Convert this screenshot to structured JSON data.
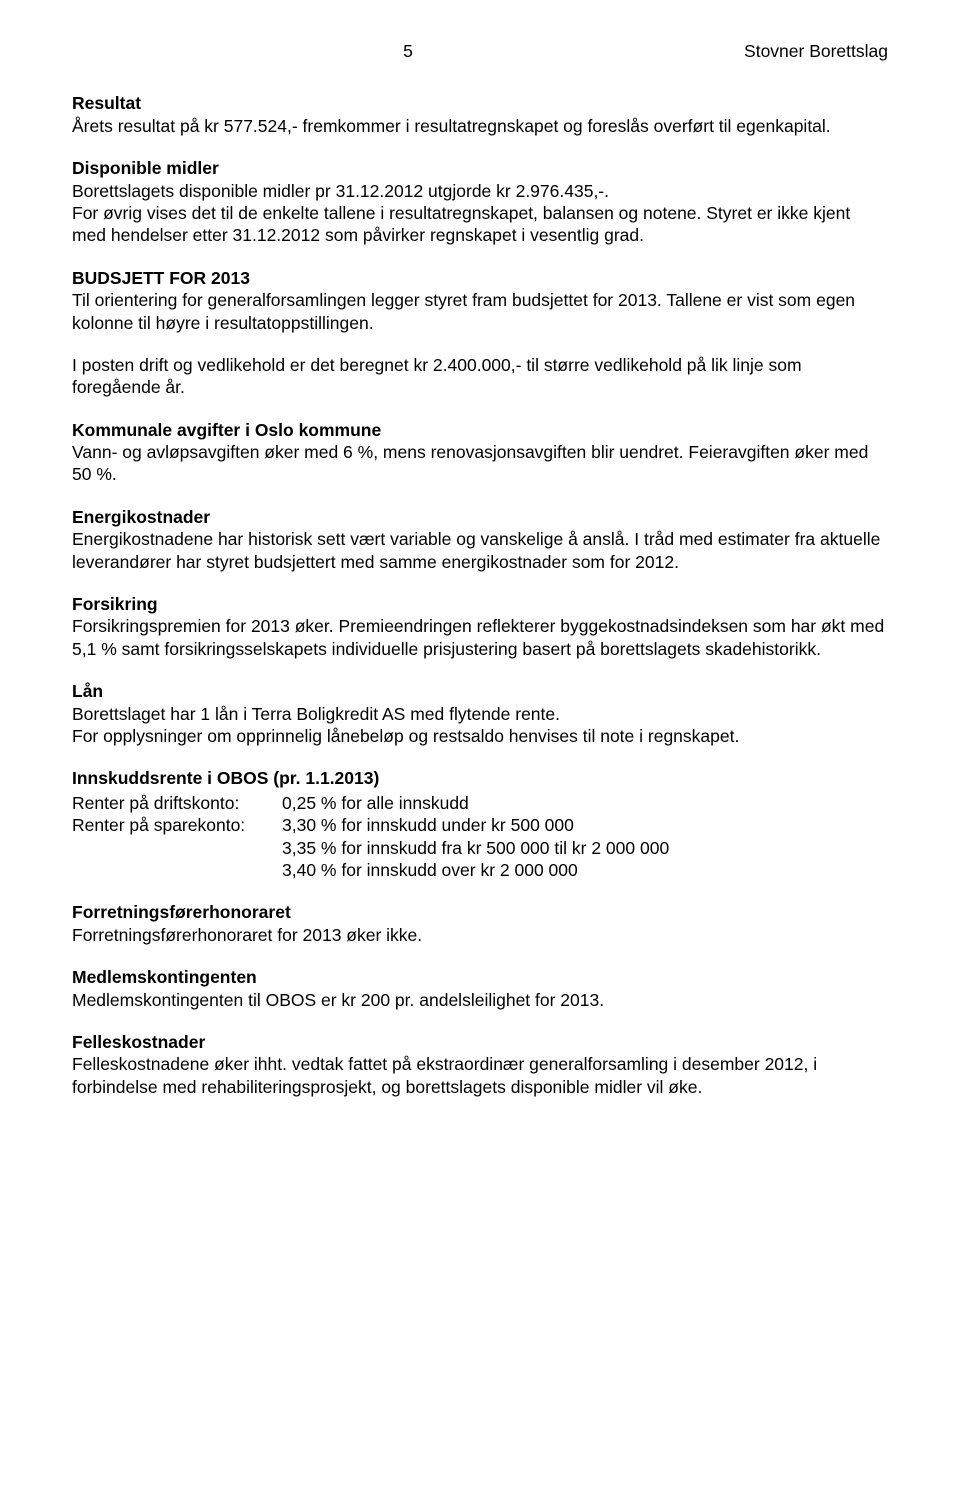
{
  "header": {
    "page_number": "5",
    "doc_title": "Stovner Borettslag"
  },
  "sections": {
    "resultat": {
      "heading": "Resultat",
      "p1": "Årets resultat på kr 577.524,- fremkommer i resultatregnskapet og foreslås overført til egenkapital."
    },
    "disponible": {
      "heading": "Disponible midler",
      "p1": "Borettslagets disponible midler pr 31.12.2012 utgjorde kr 2.976.435,-.",
      "p2": "For øvrig vises det til de enkelte tallene i resultatregnskapet, balansen og notene. Styret er ikke kjent med hendelser etter 31.12.2012 som påvirker regnskapet i vesentlig grad."
    },
    "budsjett": {
      "heading": "BUDSJETT FOR 2013",
      "p1": "Til orientering for generalforsamlingen legger styret fram budsjettet for 2013. Tallene er vist som egen kolonne til høyre i resultatoppstillingen.",
      "p2": "I posten drift og vedlikehold er det beregnet kr 2.400.000,- til større vedlikehold på lik linje som foregående år."
    },
    "kommunale": {
      "heading": "Kommunale avgifter i Oslo kommune",
      "p1": "Vann- og avløpsavgiften øker med 6 %, mens renovasjonsavgiften blir uendret. Feieravgiften øker med 50 %."
    },
    "energi": {
      "heading": "Energikostnader",
      "p1": "Energikostnadene har historisk sett vært variable og vanskelige å anslå. I tråd med estimater fra aktuelle leverandører har styret budsjettert med samme energikostnader som for 2012."
    },
    "forsikring": {
      "heading": "Forsikring",
      "p1": "Forsikringspremien for 2013 øker. Premieendringen reflekterer byggekostnadsindeksen som har økt med 5,1 % samt forsikringsselskapets individuelle prisjustering basert på borettslagets skadehistorikk."
    },
    "laan": {
      "heading": "Lån",
      "p1": "Borettslaget har 1 lån i Terra Boligkredit AS med flytende rente.",
      "p2": "For opplysninger om opprinnelig lånebeløp og restsaldo henvises til note i regnskapet."
    },
    "innskudd": {
      "heading": "Innskuddsrente i OBOS (pr. 1.1.2013)",
      "row1_label": "Renter på driftskonto:",
      "row1_val": "0,25 % for alle innskudd",
      "row2_label": "Renter på sparekonto:",
      "row2_val": "3,30 % for innskudd under kr 500 000",
      "row3_val": "3,35 % for innskudd fra kr 500 000 til kr 2 000 000",
      "row4_val": "3,40 % for innskudd over kr 2 000 000"
    },
    "forretnings": {
      "heading": "Forretningsførerhonoraret",
      "p1": "Forretningsførerhonoraret for 2013 øker ikke."
    },
    "medlem": {
      "heading": "Medlemskontingenten",
      "p1": "Medlemskontingenten til OBOS er kr 200 pr. andelsleilighet for 2013."
    },
    "felles": {
      "heading": "Felleskostnader",
      "p1": "Felleskostnadene øker ihht. vedtak fattet på ekstraordinær generalforsamling i desember 2012, i forbindelse med rehabiliteringsprosjekt, og borettslagets disponible midler vil øke."
    }
  }
}
